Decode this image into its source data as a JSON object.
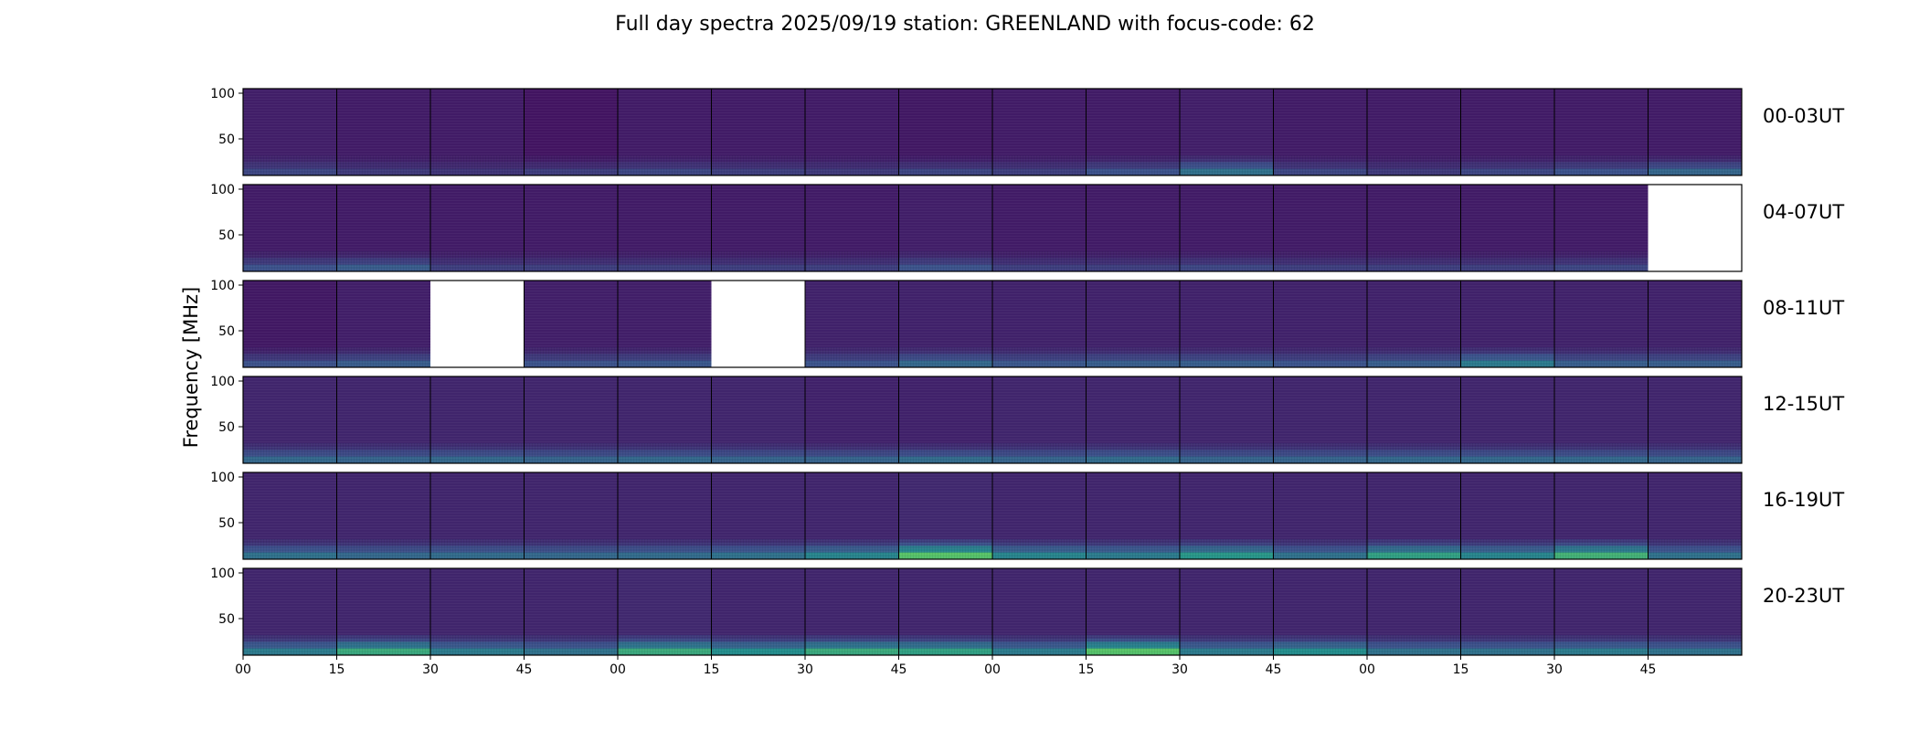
{
  "chart_data": {
    "type": "heatmap",
    "title": "Full day spectra 2025/09/19 station: GREENLAND with focus-code: 62",
    "ylabel": "Frequency [MHz]",
    "ylim": [
      10,
      105
    ],
    "yticks": [
      50,
      100
    ],
    "xticklabels": [
      "00",
      "15",
      "30",
      "45",
      "00",
      "15",
      "30",
      "45",
      "00",
      "15",
      "30",
      "45",
      "00",
      "15",
      "30",
      "45"
    ],
    "colormap": [
      "#440154",
      "#3b528b",
      "#21918c",
      "#5ec962",
      "#fde725"
    ],
    "rows": [
      {
        "label": "00-03UT",
        "panels": [
          {
            "present": true,
            "base": 0.09,
            "band": 0.25
          },
          {
            "present": true,
            "base": 0.08,
            "band": 0.2
          },
          {
            "present": true,
            "base": 0.08,
            "band": 0.18
          },
          {
            "present": true,
            "base": 0.06,
            "band": 0.22
          },
          {
            "present": true,
            "base": 0.08,
            "band": 0.25
          },
          {
            "present": true,
            "base": 0.08,
            "band": 0.22
          },
          {
            "present": true,
            "base": 0.08,
            "band": 0.2
          },
          {
            "present": true,
            "base": 0.07,
            "band": 0.25
          },
          {
            "present": true,
            "base": 0.08,
            "band": 0.22
          },
          {
            "present": true,
            "base": 0.08,
            "band": 0.3
          },
          {
            "present": true,
            "base": 0.09,
            "band": 0.45
          },
          {
            "present": true,
            "base": 0.08,
            "band": 0.25
          },
          {
            "present": true,
            "base": 0.08,
            "band": 0.2
          },
          {
            "present": true,
            "base": 0.08,
            "band": 0.25
          },
          {
            "present": true,
            "base": 0.08,
            "band": 0.3
          },
          {
            "present": true,
            "base": 0.08,
            "band": 0.4
          }
        ]
      },
      {
        "label": "04-07UT",
        "panels": [
          {
            "present": true,
            "base": 0.08,
            "band": 0.3
          },
          {
            "present": true,
            "base": 0.08,
            "band": 0.35
          },
          {
            "present": true,
            "base": 0.08,
            "band": 0.22
          },
          {
            "present": true,
            "base": 0.08,
            "band": 0.22
          },
          {
            "present": true,
            "base": 0.08,
            "band": 0.22
          },
          {
            "present": true,
            "base": 0.08,
            "band": 0.22
          },
          {
            "present": true,
            "base": 0.08,
            "band": 0.22
          },
          {
            "present": true,
            "base": 0.09,
            "band": 0.3
          },
          {
            "present": true,
            "base": 0.08,
            "band": 0.22
          },
          {
            "present": true,
            "base": 0.08,
            "band": 0.22
          },
          {
            "present": true,
            "base": 0.08,
            "band": 0.25
          },
          {
            "present": true,
            "base": 0.08,
            "band": 0.22
          },
          {
            "present": true,
            "base": 0.08,
            "band": 0.22
          },
          {
            "present": true,
            "base": 0.08,
            "band": 0.22
          },
          {
            "present": true,
            "base": 0.08,
            "band": 0.25
          },
          {
            "present": false
          }
        ]
      },
      {
        "label": "08-11UT",
        "panels": [
          {
            "present": true,
            "base": 0.07,
            "band": 0.3
          },
          {
            "present": true,
            "base": 0.09,
            "band": 0.35
          },
          {
            "present": false
          },
          {
            "present": true,
            "base": 0.09,
            "band": 0.3
          },
          {
            "present": true,
            "base": 0.09,
            "band": 0.32
          },
          {
            "present": false
          },
          {
            "present": true,
            "base": 0.1,
            "band": 0.3
          },
          {
            "present": true,
            "base": 0.1,
            "band": 0.4
          },
          {
            "present": true,
            "base": 0.1,
            "band": 0.32
          },
          {
            "present": true,
            "base": 0.1,
            "band": 0.35
          },
          {
            "present": true,
            "base": 0.1,
            "band": 0.35
          },
          {
            "present": true,
            "base": 0.1,
            "band": 0.3
          },
          {
            "present": true,
            "base": 0.1,
            "band": 0.35
          },
          {
            "present": true,
            "base": 0.1,
            "band": 0.5
          },
          {
            "present": true,
            "base": 0.1,
            "band": 0.35
          },
          {
            "present": true,
            "base": 0.1,
            "band": 0.35
          }
        ]
      },
      {
        "label": "12-15UT",
        "panels": [
          {
            "present": true,
            "base": 0.11,
            "band": 0.4
          },
          {
            "present": true,
            "base": 0.11,
            "band": 0.38
          },
          {
            "present": true,
            "base": 0.11,
            "band": 0.4
          },
          {
            "present": true,
            "base": 0.11,
            "band": 0.38
          },
          {
            "present": true,
            "base": 0.11,
            "band": 0.4
          },
          {
            "present": true,
            "base": 0.11,
            "band": 0.38
          },
          {
            "present": true,
            "base": 0.1,
            "band": 0.38
          },
          {
            "present": true,
            "base": 0.1,
            "band": 0.42
          },
          {
            "present": true,
            "base": 0.11,
            "band": 0.38
          },
          {
            "present": true,
            "base": 0.11,
            "band": 0.42
          },
          {
            "present": true,
            "base": 0.11,
            "band": 0.38
          },
          {
            "present": true,
            "base": 0.11,
            "band": 0.38
          },
          {
            "present": true,
            "base": 0.11,
            "band": 0.4
          },
          {
            "present": true,
            "base": 0.11,
            "band": 0.4
          },
          {
            "present": true,
            "base": 0.11,
            "band": 0.4
          },
          {
            "present": true,
            "base": 0.11,
            "band": 0.38
          }
        ]
      },
      {
        "label": "16-19UT",
        "panels": [
          {
            "present": true,
            "base": 0.11,
            "band": 0.45
          },
          {
            "present": true,
            "base": 0.11,
            "band": 0.4
          },
          {
            "present": true,
            "base": 0.11,
            "band": 0.42
          },
          {
            "present": true,
            "base": 0.11,
            "band": 0.4
          },
          {
            "present": true,
            "base": 0.11,
            "band": 0.42
          },
          {
            "present": true,
            "base": 0.11,
            "band": 0.45
          },
          {
            "present": true,
            "base": 0.11,
            "band": 0.55
          },
          {
            "present": true,
            "base": 0.12,
            "band": 0.9
          },
          {
            "present": true,
            "base": 0.11,
            "band": 0.55
          },
          {
            "present": true,
            "base": 0.11,
            "band": 0.5
          },
          {
            "present": true,
            "base": 0.11,
            "band": 0.65
          },
          {
            "present": true,
            "base": 0.11,
            "band": 0.45
          },
          {
            "present": true,
            "base": 0.11,
            "band": 0.7
          },
          {
            "present": true,
            "base": 0.11,
            "band": 0.55
          },
          {
            "present": true,
            "base": 0.11,
            "band": 0.8
          },
          {
            "present": true,
            "base": 0.11,
            "band": 0.45
          }
        ]
      },
      {
        "label": "20-23UT",
        "panels": [
          {
            "present": true,
            "base": 0.11,
            "band": 0.5
          },
          {
            "present": true,
            "base": 0.11,
            "band": 0.75
          },
          {
            "present": true,
            "base": 0.11,
            "band": 0.5
          },
          {
            "present": true,
            "base": 0.11,
            "band": 0.45
          },
          {
            "present": true,
            "base": 0.12,
            "band": 0.75
          },
          {
            "present": true,
            "base": 0.11,
            "band": 0.6
          },
          {
            "present": true,
            "base": 0.11,
            "band": 0.75
          },
          {
            "present": true,
            "base": 0.11,
            "band": 0.7
          },
          {
            "present": true,
            "base": 0.11,
            "band": 0.5
          },
          {
            "present": true,
            "base": 0.11,
            "band": 0.9
          },
          {
            "present": true,
            "base": 0.11,
            "band": 0.5
          },
          {
            "present": true,
            "base": 0.11,
            "band": 0.6
          },
          {
            "present": true,
            "base": 0.11,
            "band": 0.45
          },
          {
            "present": true,
            "base": 0.11,
            "band": 0.45
          },
          {
            "present": true,
            "base": 0.11,
            "band": 0.5
          },
          {
            "present": true,
            "base": 0.11,
            "band": 0.45
          }
        ]
      }
    ]
  }
}
